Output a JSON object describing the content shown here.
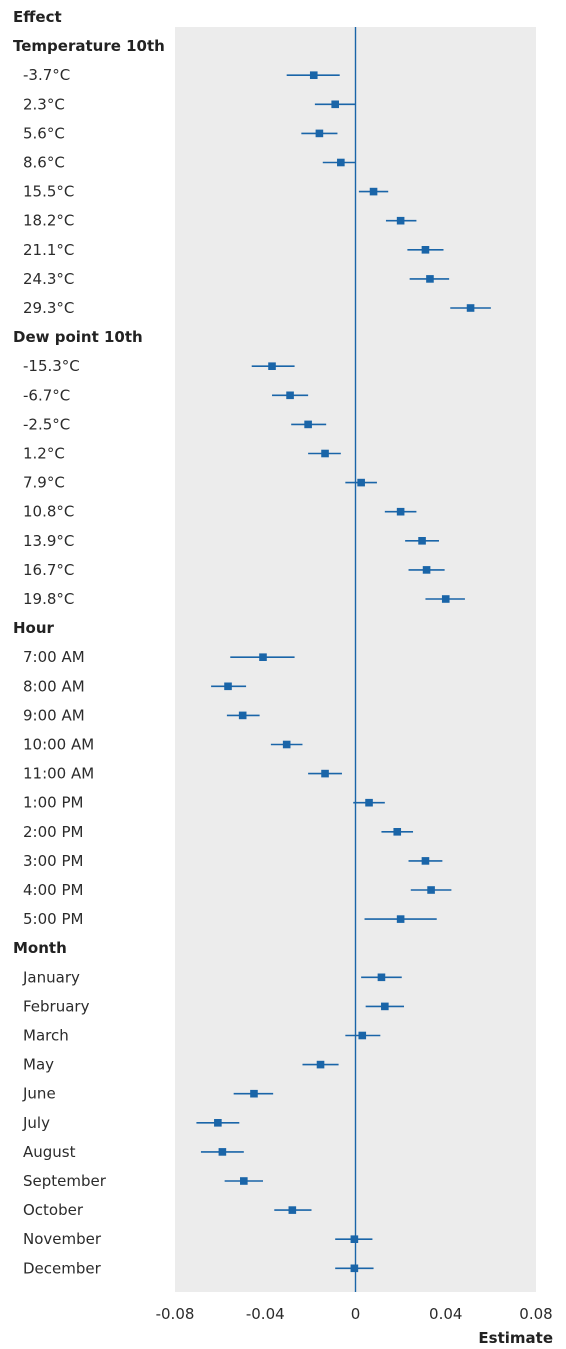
{
  "chart_data": {
    "type": "forest",
    "column_header": "Effect",
    "xlabel": "Estimate",
    "xlim": [
      -0.08,
      0.08
    ],
    "xticks": [
      "-0.08",
      "-0.04",
      "0",
      "0.04",
      "0.08"
    ],
    "xtick_values": [
      -0.08,
      -0.04,
      0,
      0.04,
      0.08
    ],
    "reference_line": 0,
    "colors": {
      "marker": "#1a65a8",
      "ci_line": "#1a65a8",
      "reference_line": "#1a65a8",
      "panel": "#ececec"
    },
    "groups": [
      {
        "title": "Temperature 10th",
        "rows": [
          {
            "label": "-3.7°C",
            "est": -0.0185,
            "lo": -0.0305,
            "hi": -0.007
          },
          {
            "label": "2.3°C",
            "est": -0.009,
            "lo": -0.018,
            "hi": 0.0
          },
          {
            "label": "5.6°C",
            "est": -0.016,
            "lo": -0.024,
            "hi": -0.008
          },
          {
            "label": "8.6°C",
            "est": -0.0065,
            "lo": -0.0145,
            "hi": 0.0
          },
          {
            "label": "15.5°C",
            "est": 0.008,
            "lo": 0.0015,
            "hi": 0.0145
          },
          {
            "label": "18.2°C",
            "est": 0.02,
            "lo": 0.0135,
            "hi": 0.027
          },
          {
            "label": "21.1°C",
            "est": 0.031,
            "lo": 0.023,
            "hi": 0.039
          },
          {
            "label": "24.3°C",
            "est": 0.033,
            "lo": 0.024,
            "hi": 0.0415
          },
          {
            "label": "29.3°C",
            "est": 0.051,
            "lo": 0.042,
            "hi": 0.06
          }
        ]
      },
      {
        "title": "Dew point 10th",
        "rows": [
          {
            "label": "-15.3°C",
            "est": -0.037,
            "lo": -0.046,
            "hi": -0.027
          },
          {
            "label": "-6.7°C",
            "est": -0.029,
            "lo": -0.037,
            "hi": -0.021
          },
          {
            "label": "-2.5°C",
            "est": -0.021,
            "lo": -0.0285,
            "hi": -0.013
          },
          {
            "label": "1.2°C",
            "est": -0.0135,
            "lo": -0.021,
            "hi": -0.0065
          },
          {
            "label": "7.9°C",
            "est": 0.0025,
            "lo": -0.0045,
            "hi": 0.0095
          },
          {
            "label": "10.8°C",
            "est": 0.02,
            "lo": 0.013,
            "hi": 0.027
          },
          {
            "label": "13.9°C",
            "est": 0.0295,
            "lo": 0.022,
            "hi": 0.037
          },
          {
            "label": "16.7°C",
            "est": 0.0315,
            "lo": 0.0235,
            "hi": 0.0395
          },
          {
            "label": "19.8°C",
            "est": 0.04,
            "lo": 0.031,
            "hi": 0.0485
          }
        ]
      },
      {
        "title": "Hour",
        "rows": [
          {
            "label": "7:00 AM",
            "est": -0.041,
            "lo": -0.0555,
            "hi": -0.027
          },
          {
            "label": "8:00 AM",
            "est": -0.0565,
            "lo": -0.064,
            "hi": -0.0485
          },
          {
            "label": "9:00 AM",
            "est": -0.05,
            "lo": -0.057,
            "hi": -0.0425
          },
          {
            "label": "10:00 AM",
            "est": -0.0305,
            "lo": -0.0375,
            "hi": -0.0235
          },
          {
            "label": "11:00 AM",
            "est": -0.0135,
            "lo": -0.021,
            "hi": -0.006
          },
          {
            "label": "1:00 PM",
            "est": 0.006,
            "lo": -0.001,
            "hi": 0.013
          },
          {
            "label": "2:00 PM",
            "est": 0.0185,
            "lo": 0.0115,
            "hi": 0.0255
          },
          {
            "label": "3:00 PM",
            "est": 0.031,
            "lo": 0.0235,
            "hi": 0.0385
          },
          {
            "label": "4:00 PM",
            "est": 0.0335,
            "lo": 0.0245,
            "hi": 0.0425
          },
          {
            "label": "5:00 PM",
            "est": 0.02,
            "lo": 0.004,
            "hi": 0.036
          }
        ]
      },
      {
        "title": "Month",
        "rows": [
          {
            "label": "January",
            "est": 0.0115,
            "lo": 0.0025,
            "hi": 0.0205
          },
          {
            "label": "February",
            "est": 0.013,
            "lo": 0.0045,
            "hi": 0.0215
          },
          {
            "label": "March",
            "est": 0.003,
            "lo": -0.0045,
            "hi": 0.011
          },
          {
            "label": "May",
            "est": -0.0155,
            "lo": -0.0235,
            "hi": -0.0075
          },
          {
            "label": "June",
            "est": -0.045,
            "lo": -0.054,
            "hi": -0.0365
          },
          {
            "label": "July",
            "est": -0.061,
            "lo": -0.0705,
            "hi": -0.0515
          },
          {
            "label": "August",
            "est": -0.059,
            "lo": -0.0685,
            "hi": -0.0495
          },
          {
            "label": "September",
            "est": -0.0495,
            "lo": -0.058,
            "hi": -0.041
          },
          {
            "label": "October",
            "est": -0.028,
            "lo": -0.036,
            "hi": -0.0195
          },
          {
            "label": "November",
            "est": -0.0005,
            "lo": -0.009,
            "hi": 0.0075
          },
          {
            "label": "December",
            "est": -0.0005,
            "lo": -0.009,
            "hi": 0.008
          }
        ]
      }
    ]
  }
}
